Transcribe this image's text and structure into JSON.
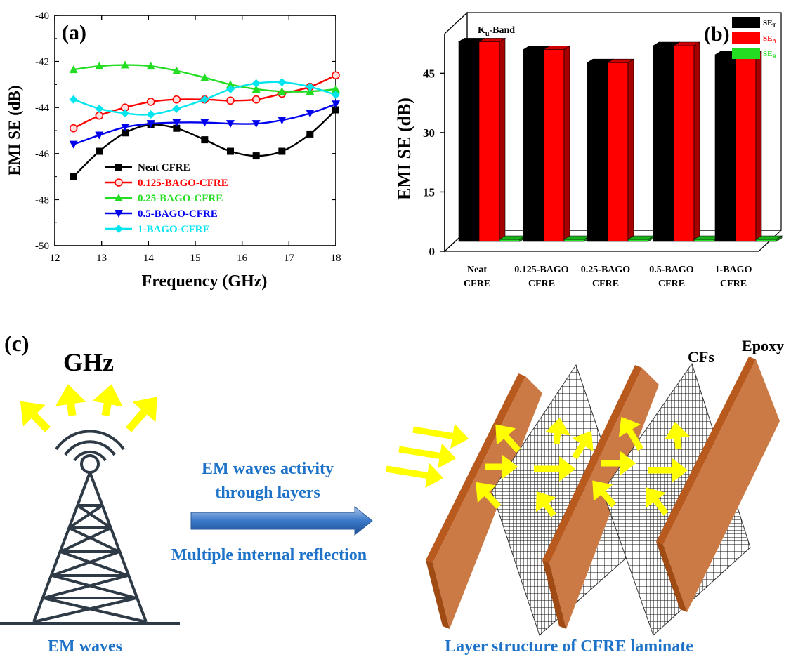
{
  "colors": {
    "neat": "#000000",
    "bago0125": "#ff0000",
    "bago025": "#22dd22",
    "bago05": "#0000ee",
    "bago1": "#00e5ee",
    "laminate": "#cc7a45",
    "laminate_edge": "#b85a1e",
    "arrow": "#ffff00",
    "arrow_label": "#1e73c8",
    "ghz": "#ff0000",
    "big_arrow": "#3a78c8"
  },
  "chart_data": [
    {
      "panel_label": "(a)",
      "type": "line",
      "xlabel": "Frequency (GHz)",
      "ylabel": "EMI SE (dB)",
      "xlim": [
        12,
        18
      ],
      "ylim": [
        -50,
        -40
      ],
      "xticks": [
        "12",
        "13",
        "14",
        "15",
        "16",
        "17",
        "18"
      ],
      "yticks": [
        "-50",
        "-48",
        "-46",
        "-44",
        "-42",
        "-40"
      ],
      "legend_position": "bottom-left",
      "series": [
        {
          "name": "Neat CFRE",
          "color_key": "neat",
          "marker": "square",
          "x": [
            12.4,
            12.95,
            13.5,
            14.05,
            14.6,
            15.2,
            15.75,
            16.3,
            16.85,
            17.45,
            18.0
          ],
          "y": [
            -47.0,
            -45.9,
            -45.1,
            -44.75,
            -44.9,
            -45.4,
            -45.9,
            -46.1,
            -45.9,
            -45.15,
            -44.1
          ]
        },
        {
          "name": "0.125-BAGO-CFRE",
          "color_key": "bago0125",
          "marker": "circle",
          "x": [
            12.4,
            12.95,
            13.5,
            14.05,
            14.6,
            15.2,
            15.75,
            16.3,
            16.85,
            17.45,
            18.0
          ],
          "y": [
            -44.9,
            -44.35,
            -44.0,
            -43.75,
            -43.65,
            -43.65,
            -43.7,
            -43.65,
            -43.4,
            -43.1,
            -42.6
          ]
        },
        {
          "name": "0.25-BAGO-CFRE",
          "color_key": "bago025",
          "marker": "triangle-up",
          "x": [
            12.4,
            12.95,
            13.5,
            14.05,
            14.6,
            15.2,
            15.75,
            16.3,
            16.85,
            17.45,
            18.0
          ],
          "y": [
            -42.35,
            -42.2,
            -42.15,
            -42.2,
            -42.4,
            -42.7,
            -43.0,
            -43.2,
            -43.3,
            -43.3,
            -43.2
          ]
        },
        {
          "name": "0.5-BAGO-CFRE",
          "color_key": "bago05",
          "marker": "triangle-down",
          "x": [
            12.4,
            12.95,
            13.5,
            14.05,
            14.6,
            15.2,
            15.75,
            16.3,
            16.85,
            17.45,
            18.0
          ],
          "y": [
            -45.6,
            -45.2,
            -44.85,
            -44.7,
            -44.65,
            -44.65,
            -44.7,
            -44.7,
            -44.55,
            -44.25,
            -43.85
          ]
        },
        {
          "name": "1-BAGO-CFRE",
          "color_key": "bago1",
          "marker": "diamond",
          "x": [
            12.4,
            12.95,
            13.5,
            14.05,
            14.6,
            15.2,
            15.75,
            16.3,
            16.85,
            17.45,
            18.0
          ],
          "y": [
            -43.65,
            -44.05,
            -44.25,
            -44.3,
            -44.05,
            -43.65,
            -43.2,
            -42.95,
            -42.9,
            -43.1,
            -43.45
          ]
        }
      ]
    },
    {
      "panel_label": "(b)",
      "type": "bar",
      "annotation_main": "K",
      "annotation_sub": "u",
      "annotation_rest": "-Band",
      "ylabel": "EMI SE (dB)",
      "ylim": [
        0,
        55
      ],
      "yticks": [
        "0",
        "15",
        "30",
        "45"
      ],
      "categories": [
        [
          "Neat",
          "CFRE"
        ],
        [
          "0.125-BAGO",
          "CFRE"
        ],
        [
          "0.25-BAGO",
          "CFRE"
        ],
        [
          "0.5-BAGO",
          "CFRE"
        ],
        [
          "1-BAGO",
          "CFRE"
        ]
      ],
      "legend_position": "top-right",
      "series": [
        {
          "name_main": "SE",
          "name_sub": "T",
          "color": "#000000",
          "values": [
            50.5,
            48.5,
            45.2,
            49.5,
            47.2
          ]
        },
        {
          "name_main": "SE",
          "name_sub": "A",
          "color": "#ff0000",
          "values": [
            50.5,
            48.5,
            45.2,
            49.5,
            47.2
          ]
        },
        {
          "name_main": "SE",
          "name_sub": "R",
          "color": "#22dd22",
          "values": [
            0.2,
            0.2,
            0.2,
            0.2,
            0.2
          ]
        }
      ]
    }
  ],
  "panel_c": {
    "panel_label": "(c)",
    "source_label": "GHz",
    "tower_caption": "EM waves",
    "arrow_text_line1": "EM waves activity",
    "arrow_text_line2": "through layers",
    "arrow_text_bottom": "Multiple internal reflection",
    "laminate_caption": "Layer structure of CFRE laminate",
    "cfs_label": "CFs",
    "epoxy_label": "Epoxy"
  }
}
